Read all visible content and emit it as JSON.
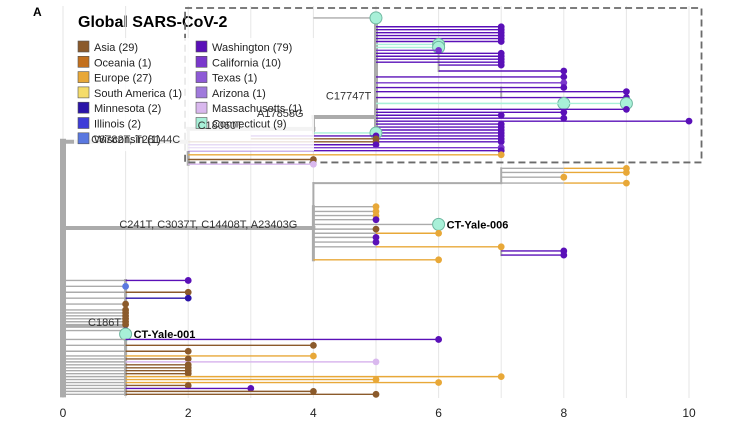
{
  "chart_data": {
    "type": "phylogenetic-tree",
    "panel_label": "A",
    "title": "Global SARS-CoV-2",
    "x_axis": {
      "ticks": [
        0,
        2,
        4,
        6,
        8,
        10
      ],
      "range": [
        0,
        10
      ],
      "grid": true
    },
    "legend": {
      "placement": "top-left",
      "groups": [
        [
          {
            "label": "Asia (29)",
            "color": "#8B5A2B"
          },
          {
            "label": "Oceania (1)",
            "color": "#C2701E"
          },
          {
            "label": "Europe (27)",
            "color": "#E8A838"
          },
          {
            "label": "South America (1)",
            "color": "#F5DC6A"
          },
          {
            "label": "Minnesota (2)",
            "color": "#2A13A8"
          },
          {
            "label": "Illinois (2)",
            "color": "#3E3CD8"
          },
          {
            "label": "Wisconsin (1)",
            "color": "#5A78E0"
          }
        ],
        [
          {
            "label": "Washington (79)",
            "color": "#5A10B8"
          },
          {
            "label": "California (10)",
            "color": "#7A38CC"
          },
          {
            "label": "Texas (1)",
            "color": "#8E5AD6"
          },
          {
            "label": "Arizona (1)",
            "color": "#A07ADC"
          },
          {
            "label": "Massachusetts (1)",
            "color": "#D9B8EE"
          },
          {
            "label": "Connecticut (9)",
            "color": "#A8F0D8"
          }
        ]
      ]
    },
    "mutation_labels": [
      {
        "text": "C17747T",
        "x": 4.2,
        "y": 14.8
      },
      {
        "text": "A17858G",
        "x": 3.1,
        "y": 17.8
      },
      {
        "text": "C18060T",
        "x": 2.15,
        "y": 19.8
      },
      {
        "text": "C8782T, T28144C",
        "x": 0.45,
        "y": 22.2
      },
      {
        "text": "C241T, C3037T, C14408T, A23403G",
        "x": 0.9,
        "y": 36.6
      },
      {
        "text": "C186T",
        "x": 0.4,
        "y": 53.2
      }
    ],
    "highlighted_samples": [
      {
        "label": "CT-Yale-006",
        "x": 6.0,
        "y": 36.0
      },
      {
        "label": "CT-Yale-001",
        "x": 1.0,
        "y": 54.6
      }
    ],
    "zoom_box": {
      "x_range": [
        1.95,
        10.2
      ],
      "y_range": [
        0.0,
        25.5
      ]
    },
    "rows": [
      [
        5,
        1,
        4,
        5,
        "CT"
      ],
      [
        5,
        2.5,
        5,
        7,
        "WA"
      ],
      [
        5,
        3.0,
        5,
        7,
        "WA"
      ],
      [
        5,
        3.5,
        5,
        7,
        "WA"
      ],
      [
        5,
        4.0,
        5,
        7,
        "WA"
      ],
      [
        5,
        4.5,
        5,
        7,
        "WA"
      ],
      [
        5,
        5.0,
        5,
        7,
        "WA"
      ],
      [
        5,
        5.5,
        5,
        6,
        "CT"
      ],
      [
        5,
        6.0,
        6,
        6,
        "CT"
      ],
      [
        5,
        6.5,
        6,
        6,
        "CA"
      ],
      [
        5,
        7.0,
        6,
        7,
        "WA"
      ],
      [
        5,
        7.5,
        6,
        7,
        "WA"
      ],
      [
        5,
        8.0,
        6,
        7,
        "WA"
      ],
      [
        5,
        8.5,
        6,
        7,
        "WA"
      ],
      [
        6,
        9.0,
        6,
        7,
        "WA"
      ],
      [
        6,
        10.0,
        6,
        8,
        "WA"
      ],
      [
        5,
        11.0,
        5,
        8,
        "WA"
      ],
      [
        5,
        12.0,
        5,
        8,
        "CA"
      ],
      [
        5,
        12.8,
        7,
        8,
        "WA"
      ],
      [
        5,
        13.5,
        7,
        9,
        "WA"
      ],
      [
        5,
        14.5,
        7,
        9,
        "WA"
      ],
      [
        5,
        15.5,
        5,
        8,
        "CT"
      ],
      [
        5,
        15.5,
        8,
        9,
        "CT"
      ],
      [
        5,
        16.5,
        5,
        9,
        "WA"
      ],
      [
        5,
        17.0,
        5,
        8,
        "WA"
      ],
      [
        5,
        17.5,
        5,
        7,
        "WA"
      ],
      [
        5,
        18.0,
        5,
        8,
        "WA"
      ],
      [
        5,
        18.5,
        5,
        10,
        "WA"
      ],
      [
        5,
        19.0,
        5,
        7,
        "WA"
      ],
      [
        5,
        19.5,
        5,
        7,
        "WA"
      ],
      [
        5,
        20.0,
        5,
        7,
        "WA"
      ],
      [
        5,
        20.5,
        5,
        7,
        "WA"
      ],
      [
        5,
        21.0,
        5,
        7,
        "WA"
      ],
      [
        5,
        21.5,
        5,
        7,
        "WA"
      ],
      [
        5,
        22.0,
        5,
        7,
        "WA"
      ],
      [
        4,
        20.5,
        4,
        5,
        "CT"
      ],
      [
        3,
        21.0,
        3,
        5,
        "WA"
      ],
      [
        3,
        21.5,
        3,
        5,
        "AS"
      ],
      [
        2,
        22.0,
        2,
        5,
        "AS"
      ],
      [
        2,
        22.5,
        2,
        5,
        "WA"
      ],
      [
        2,
        23.0,
        2,
        7,
        "CA"
      ],
      [
        2,
        23.5,
        2,
        7,
        "WA"
      ],
      [
        2,
        24.2,
        2,
        7,
        "EU"
      ],
      [
        2,
        25.0,
        2,
        4,
        "AS"
      ],
      [
        2,
        25.8,
        2,
        4,
        "MA"
      ],
      [
        8,
        26.5,
        7,
        9,
        "EU"
      ],
      [
        8,
        27.2,
        7,
        9,
        "EU"
      ],
      [
        8,
        28.0,
        7,
        8,
        "EU"
      ],
      [
        8,
        29.0,
        7,
        9,
        "EU"
      ],
      [
        5,
        33.0,
        4,
        5,
        "EU"
      ],
      [
        5,
        33.8,
        4,
        5,
        "EU"
      ],
      [
        5,
        34.5,
        4,
        5,
        "EU"
      ],
      [
        5,
        35.2,
        4,
        5,
        "WA"
      ],
      [
        6,
        36.0,
        4,
        6,
        "CT"
      ],
      [
        5,
        36.8,
        4,
        5,
        "AS"
      ],
      [
        5,
        37.5,
        4,
        6,
        "EU"
      ],
      [
        5,
        38.2,
        4,
        5,
        "WA"
      ],
      [
        5,
        39.0,
        4,
        5,
        "WA"
      ],
      [
        5,
        39.8,
        4,
        7,
        "EU"
      ],
      [
        7,
        40.5,
        7,
        8,
        "WA"
      ],
      [
        7,
        41.2,
        7,
        8,
        "WA"
      ],
      [
        4,
        42.0,
        4,
        6,
        "EU"
      ],
      [
        1,
        45.5,
        0,
        2,
        "WA"
      ],
      [
        1,
        46.5,
        0,
        1,
        "WI"
      ],
      [
        1,
        47.5,
        0,
        2,
        "AS"
      ],
      [
        1,
        48.5,
        0,
        2,
        "MN"
      ],
      [
        1,
        49.5,
        0,
        1,
        "AS"
      ],
      [
        1,
        50.5,
        0,
        1,
        "AS"
      ],
      [
        1,
        51.0,
        0,
        1,
        "AS"
      ],
      [
        1,
        51.5,
        0,
        1,
        "AS"
      ],
      [
        1,
        52.0,
        0,
        1,
        "AS"
      ],
      [
        1,
        52.5,
        0,
        1,
        "AS"
      ],
      [
        1,
        53.0,
        0,
        1,
        "AS"
      ],
      [
        1,
        54.0,
        0,
        1,
        "MN"
      ],
      [
        1,
        54.6,
        1,
        1,
        "CT"
      ],
      [
        1,
        55.5,
        0,
        6,
        "WA"
      ],
      [
        1,
        56.5,
        0,
        4,
        "AS"
      ],
      [
        1,
        57.5,
        0,
        2,
        "AS"
      ],
      [
        1,
        58.3,
        0,
        4,
        "EU"
      ],
      [
        1,
        58.8,
        0,
        2,
        "AS"
      ],
      [
        1,
        59.3,
        0,
        5,
        "MA"
      ],
      [
        1,
        59.8,
        0,
        2,
        "AS"
      ],
      [
        1,
        60.3,
        0,
        2,
        "AS"
      ],
      [
        1,
        60.8,
        0,
        2,
        "AS"
      ],
      [
        1,
        61.3,
        0,
        2,
        "AS"
      ],
      [
        1,
        61.8,
        0,
        7,
        "EU"
      ],
      [
        1,
        62.3,
        0,
        5,
        "EU"
      ],
      [
        1,
        62.8,
        0,
        6,
        "EU"
      ],
      [
        1,
        63.3,
        0,
        2,
        "AS"
      ],
      [
        1,
        63.8,
        0,
        3,
        "WA"
      ],
      [
        1,
        64.3,
        0,
        4,
        "AS"
      ],
      [
        1,
        64.8,
        0,
        5,
        "AS"
      ]
    ]
  }
}
